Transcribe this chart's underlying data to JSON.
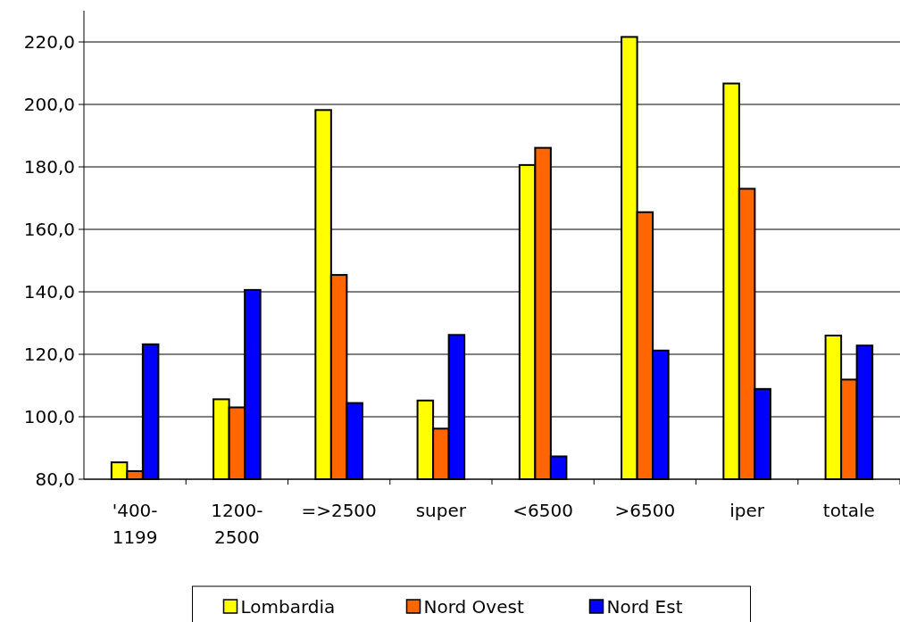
{
  "chart_data": {
    "type": "bar",
    "categories": [
      "'400-1199",
      "1200-2500",
      "=>2500",
      "super",
      "<6500",
      ">6500",
      "iper",
      "totale"
    ],
    "series": [
      {
        "name": "Lombardia",
        "color": "#ffff00",
        "values": [
          85.4,
          105.6,
          198.2,
          105.2,
          180.6,
          221.6,
          206.7,
          126.0
        ]
      },
      {
        "name": "Nord Ovest",
        "color": "#ff6600",
        "values": [
          82.6,
          103.0,
          145.4,
          96.2,
          186.1,
          165.5,
          173.0,
          111.9
        ]
      },
      {
        "name": "Nord Est",
        "color": "#0000ff",
        "values": [
          123.2,
          140.6,
          104.4,
          126.2,
          87.3,
          121.2,
          108.9,
          122.8
        ]
      }
    ],
    "ylim": [
      80,
      230
    ],
    "yticks": [
      {
        "value": 80,
        "label": "80,0"
      },
      {
        "value": 100,
        "label": "100,0"
      },
      {
        "value": 120,
        "label": "120,0"
      },
      {
        "value": 140,
        "label": "140,0"
      },
      {
        "value": 160,
        "label": "160,0"
      },
      {
        "value": 180,
        "label": "180,0"
      },
      {
        "value": 200,
        "label": "200,0"
      },
      {
        "value": 220,
        "label": "220,0"
      }
    ],
    "grid": "y",
    "legend": "bottom"
  }
}
